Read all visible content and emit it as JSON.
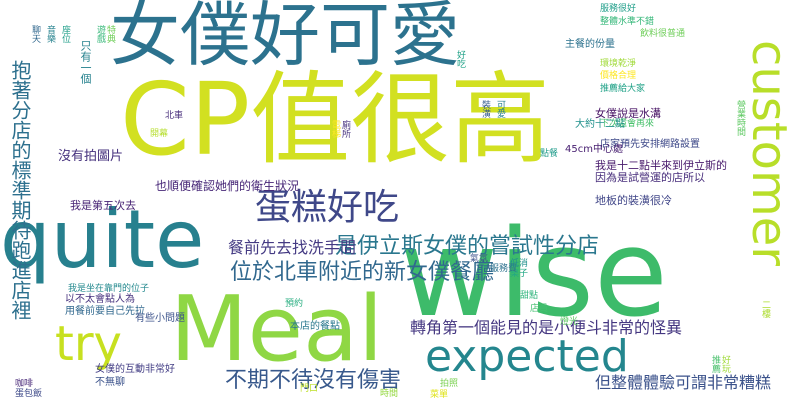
{
  "words": [
    {
      "text": "wise",
      "color": "#3dbb6a"
    },
    {
      "text": "CP值很高",
      "color": "#d2e021"
    },
    {
      "text": "女僕好可愛",
      "color": "#2c728e"
    },
    {
      "text": "quite",
      "color": "#27808e"
    },
    {
      "text": "Meal",
      "color": "#8fd744"
    },
    {
      "text": "customer",
      "color": "#b8de29"
    },
    {
      "text": "expected",
      "color": "#24868e"
    },
    {
      "text": "try",
      "color": "#c7e020"
    },
    {
      "text": "蛋糕好吃",
      "color": "#3f4889"
    },
    {
      "text": "位於北車附近的新女僕餐廳",
      "color": "#31688e"
    },
    {
      "text": "是伊立斯女僕的嘗試性分店",
      "color": "#2a778e"
    },
    {
      "text": "不期不待沒有傷害",
      "color": "#38598c"
    },
    {
      "text": "轉角第一個能見的是小便斗非常的怪異",
      "color": "#453781"
    },
    {
      "text": "但整體體驗可謂非常糟糕",
      "color": "#3b528b"
    },
    {
      "text": "餐前先去找洗手間",
      "color": "#443a83"
    },
    {
      "text": "沒有拍圖片",
      "color": "#46327e"
    },
    {
      "text": "抱著分店的標準期待跑進店裡",
      "color": "#2d708e"
    },
    {
      "text": "也順便確認她們的衛生狀況",
      "color": "#482878"
    },
    {
      "text": "我是第五次去",
      "color": "#482475"
    },
    {
      "text": "女僕說是水溝",
      "color": "#471365"
    },
    {
      "text": "我是十二點半來到伊立斯的",
      "color": "#481a6c"
    },
    {
      "text": "因為是試營運的店所以",
      "color": "#472d7b"
    },
    {
      "text": "地板的裝潢很冷",
      "color": "#404688"
    },
    {
      "text": "店家預先安排網路設置",
      "color": "#3e4989"
    },
    {
      "text": "以不太會點人為",
      "color": "#46327e"
    },
    {
      "text": "用餐前要自己先拉",
      "color": "#31688e"
    },
    {
      "text": "45cm中心處",
      "color": "#482071"
    },
    {
      "text": "有些小問題",
      "color": "#3b528b"
    },
    {
      "text": "本店的餐點",
      "color": "#2a788e"
    },
    {
      "text": "只有一個",
      "color": "#26828e"
    },
    {
      "text": "服務很好",
      "color": "#1f9e89"
    },
    {
      "text": "整體水準不錯",
      "color": "#35b779"
    },
    {
      "text": "飲料很普通",
      "color": "#6ece58"
    },
    {
      "text": "環境乾淨",
      "color": "#a0da39"
    },
    {
      "text": "價格合理",
      "color": "#fde725"
    },
    {
      "text": "推薦給大家",
      "color": "#1fa187"
    },
    {
      "text": "下次還會再來",
      "color": "#4ac16d"
    },
    {
      "text": "女僕的互動非常好",
      "color": "#433e85"
    },
    {
      "text": "不無聊",
      "color": "#3b528b"
    },
    {
      "text": "主餐的份量",
      "color": "#2c728e"
    },
    {
      "text": "大約十二點",
      "color": "#21918c"
    },
    {
      "text": "我是坐在靠門的位子",
      "color": "#23898e"
    },
    {
      "text": "點餐",
      "color": "#1e9b8a"
    },
    {
      "text": "桌子",
      "color": "#22a884"
    },
    {
      "text": "甜點",
      "color": "#2fb47c"
    },
    {
      "text": "店員",
      "color": "#44bf70"
    },
    {
      "text": "燈光",
      "color": "#5ec962"
    },
    {
      "text": "拍照",
      "color": "#7ad151"
    },
    {
      "text": "時間",
      "color": "#95d840"
    },
    {
      "text": "門口",
      "color": "#bddf26"
    },
    {
      "text": "菜單",
      "color": "#dfe318"
    },
    {
      "text": "咖啡",
      "color": "#482878"
    },
    {
      "text": "蛋包飯",
      "color": "#3e4a89"
    },
    {
      "text": "聊天",
      "color": "#31688e"
    },
    {
      "text": "音樂",
      "color": "#26828e"
    },
    {
      "text": "座位",
      "color": "#1f9e89"
    },
    {
      "text": "遊戲",
      "color": "#35b779"
    },
    {
      "text": "特典",
      "color": "#6ece58"
    },
    {
      "text": "開幕",
      "color": "#b5de2b"
    },
    {
      "text": "北車",
      "color": "#472d7b"
    },
    {
      "text": "氣氛",
      "color": "#3b528b"
    },
    {
      "text": "服務費",
      "color": "#2c728e"
    },
    {
      "text": "低消",
      "color": "#21918c"
    },
    {
      "text": "預約",
      "color": "#28ae80"
    },
    {
      "text": "營業時間",
      "color": "#5ec962"
    },
    {
      "text": "二樓",
      "color": "#addc30"
    },
    {
      "text": "電梯",
      "color": "#fde725"
    },
    {
      "text": "廁所",
      "color": "#46327e"
    },
    {
      "text": "裝潢",
      "color": "#365c8d"
    },
    {
      "text": "可愛",
      "color": "#277f8e"
    },
    {
      "text": "好吃",
      "color": "#1fa187"
    },
    {
      "text": "推薦",
      "color": "#4ac16d"
    },
    {
      "text": "好玩",
      "color": "#a0da39"
    }
  ]
}
